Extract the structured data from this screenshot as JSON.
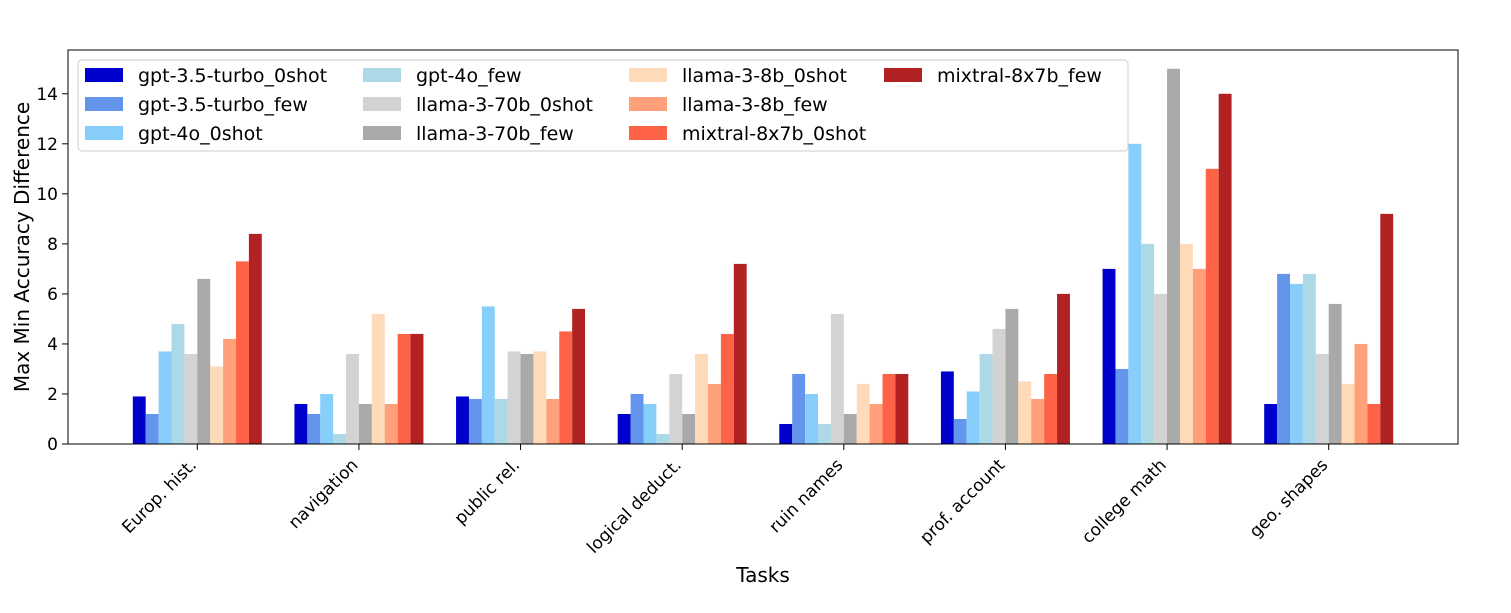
{
  "chart_data": {
    "type": "bar",
    "title": "",
    "xlabel": "Tasks",
    "ylabel": "Max Min Accuracy Difference",
    "ylim": [
      0,
      15.75
    ],
    "yticks": [
      0,
      2,
      4,
      6,
      8,
      10,
      12,
      14
    ],
    "grid": false,
    "legend_position": "top-left",
    "categories": [
      "Europ. hist.",
      "navigation",
      "public rel.",
      "logical deduct.",
      "ruin names",
      "prof. account",
      "college math",
      "geo. shapes"
    ],
    "series": [
      {
        "name": "gpt-3.5-turbo_0shot",
        "color": "#0000cd",
        "values": [
          1.9,
          1.6,
          1.9,
          1.2,
          0.8,
          2.9,
          7.0,
          1.6
        ]
      },
      {
        "name": "gpt-3.5-turbo_few",
        "color": "#6495ed",
        "values": [
          1.2,
          1.2,
          1.8,
          2.0,
          2.8,
          1.0,
          3.0,
          6.8
        ]
      },
      {
        "name": "gpt-4o_0shot",
        "color": "#87cefa",
        "values": [
          3.7,
          2.0,
          5.5,
          1.6,
          2.0,
          2.1,
          12.0,
          6.4
        ]
      },
      {
        "name": "gpt-4o_few",
        "color": "#add8e6",
        "values": [
          4.8,
          0.4,
          1.8,
          0.4,
          0.8,
          3.6,
          8.0,
          6.8
        ]
      },
      {
        "name": "llama-3-70b_0shot",
        "color": "#d3d3d3",
        "values": [
          3.6,
          3.6,
          3.7,
          2.8,
          5.2,
          4.6,
          6.0,
          3.6
        ]
      },
      {
        "name": "llama-3-70b_few",
        "color": "#a9a9a9",
        "values": [
          6.6,
          1.6,
          3.6,
          1.2,
          1.2,
          5.4,
          15.0,
          5.6
        ]
      },
      {
        "name": "llama-3-8b_0shot",
        "color": "#ffdab9",
        "values": [
          3.1,
          5.2,
          3.7,
          3.6,
          2.4,
          2.5,
          8.0,
          2.4
        ]
      },
      {
        "name": "llama-3-8b_few",
        "color": "#ffa07a",
        "values": [
          4.2,
          1.6,
          1.8,
          2.4,
          1.6,
          1.8,
          7.0,
          4.0
        ]
      },
      {
        "name": "mixtral-8x7b_0shot",
        "color": "#ff6347",
        "values": [
          7.3,
          4.4,
          4.5,
          4.4,
          2.8,
          2.8,
          11.0,
          1.6
        ]
      },
      {
        "name": "mixtral-8x7b_few",
        "color": "#b22222",
        "values": [
          8.4,
          4.4,
          5.4,
          7.2,
          2.8,
          6.0,
          14.0,
          9.2
        ]
      }
    ]
  }
}
